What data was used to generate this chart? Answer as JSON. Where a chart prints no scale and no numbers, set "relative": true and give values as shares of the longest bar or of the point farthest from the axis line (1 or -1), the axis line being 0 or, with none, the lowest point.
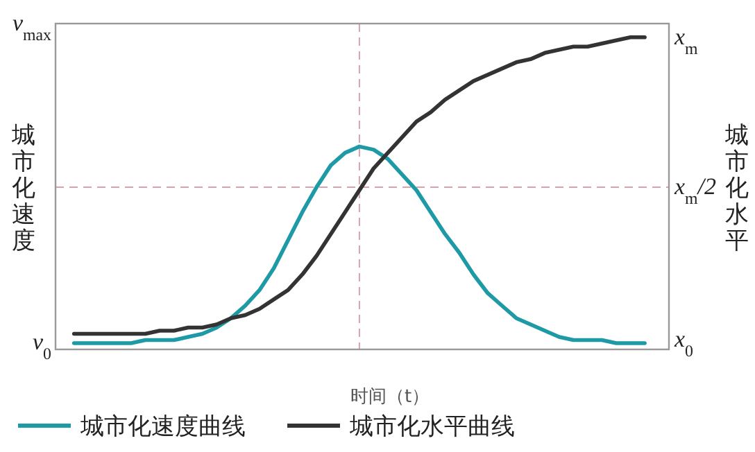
{
  "chart_data": {
    "type": "line",
    "xlabel": "时间（t）",
    "ylabel": "城市化速度",
    "y2label": "城市化水平",
    "categories": [
      null,
      null,
      null,
      null,
      null,
      null,
      null,
      null,
      null,
      null,
      null,
      null,
      null,
      null,
      null,
      null,
      null,
      null,
      null,
      null,
      null,
      null,
      null,
      null,
      null,
      null,
      null,
      null,
      null,
      null,
      null,
      null,
      null,
      null,
      null,
      null,
      null,
      null,
      null,
      null,
      null
    ],
    "series": [
      {
        "name": "城市化速度曲线",
        "color": "#1e9aa6",
        "values": [
          0.02,
          0.02,
          0.02,
          0.02,
          0.02,
          0.03,
          0.03,
          0.03,
          0.04,
          0.05,
          0.07,
          0.1,
          0.14,
          0.19,
          0.26,
          0.35,
          0.44,
          0.52,
          0.59,
          0.63,
          0.65,
          0.64,
          0.61,
          0.56,
          0.51,
          0.44,
          0.37,
          0.31,
          0.24,
          0.18,
          0.14,
          0.1,
          0.08,
          0.06,
          0.04,
          0.03,
          0.03,
          0.03,
          0.02,
          0.02,
          0.02
        ]
      },
      {
        "name": "城市化水平曲线",
        "color": "#333333",
        "values": [
          0.05,
          0.05,
          0.05,
          0.05,
          0.05,
          0.05,
          0.06,
          0.06,
          0.07,
          0.07,
          0.08,
          0.1,
          0.11,
          0.13,
          0.16,
          0.19,
          0.24,
          0.3,
          0.37,
          0.44,
          0.51,
          0.58,
          0.63,
          0.68,
          0.73,
          0.76,
          0.8,
          0.83,
          0.86,
          0.88,
          0.9,
          0.92,
          0.93,
          0.95,
          0.96,
          0.97,
          0.97,
          0.98,
          0.99,
          1,
          1
        ]
      }
    ],
    "ref_lines": [
      {
        "axis": "y",
        "value": 0.52,
        "color": "#d8a3ab",
        "line_style": "dashed"
      }
    ],
    "relative": true,
    "annotations": [
      "v$_{max}$",
      "v$_{0}$",
      "x$_{m}$",
      "x$_{m}$/2",
      "x$_{0}$"
    ],
    "legend": "bottom",
    "line_style": "solid"
  }
}
